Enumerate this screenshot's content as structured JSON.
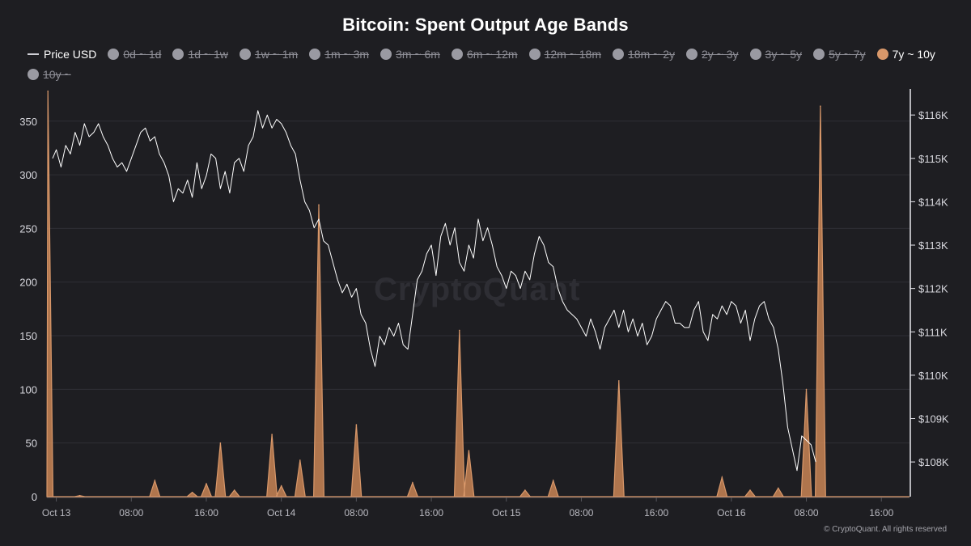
{
  "title": "Bitcoin: Spent Output Age Bands",
  "watermark": "CryptoQuant",
  "copyright": "© CryptoQuant. All rights reserved",
  "legend": [
    {
      "label": "Price USD",
      "state": "price"
    },
    {
      "label": "0d ~ 1d",
      "state": "disabled"
    },
    {
      "label": "1d ~ 1w",
      "state": "disabled"
    },
    {
      "label": "1w ~ 1m",
      "state": "disabled"
    },
    {
      "label": "1m ~ 3m",
      "state": "disabled"
    },
    {
      "label": "3m ~ 6m",
      "state": "disabled"
    },
    {
      "label": "6m ~ 12m",
      "state": "disabled"
    },
    {
      "label": "12m ~ 18m",
      "state": "disabled"
    },
    {
      "label": "18m ~ 2y",
      "state": "disabled"
    },
    {
      "label": "2y ~ 3y",
      "state": "disabled"
    },
    {
      "label": "3y ~ 5y",
      "state": "disabled"
    },
    {
      "label": "5y ~ 7y",
      "state": "disabled"
    },
    {
      "label": "7y ~ 10y",
      "state": "active"
    },
    {
      "label": "10y ~",
      "state": "disabled"
    }
  ],
  "colors": {
    "background": "#1e1e22",
    "area": "#d9986a",
    "area_fill": "#c98555",
    "price_line": "#ffffff",
    "grid": "#2f2f35",
    "disabled": "#9a9aa2"
  },
  "chart_data": {
    "type": "line+area",
    "x_ticks": [
      "Oct 13",
      "08:00",
      "16:00",
      "Oct 14",
      "08:00",
      "16:00",
      "Oct 15",
      "08:00",
      "16:00",
      "Oct 16",
      "08:00",
      "16:00"
    ],
    "x_range_hours": [
      -1,
      91
    ],
    "left_axis": {
      "ticks": [
        0,
        50,
        100,
        150,
        200,
        250,
        300,
        350
      ],
      "range": [
        0,
        380
      ]
    },
    "right_axis": {
      "ticks": [
        "$108K",
        "$109K",
        "$110K",
        "$111K",
        "$112K",
        "$113K",
        "$114K",
        "$115K",
        "$116K"
      ],
      "range": [
        107200,
        116600
      ]
    },
    "series": [
      {
        "name": "Price USD",
        "axis": "right",
        "points": [
          [
            -0.4,
            115000
          ],
          [
            0,
            115200
          ],
          [
            0.5,
            114800
          ],
          [
            1,
            115300
          ],
          [
            1.5,
            115100
          ],
          [
            2,
            115600
          ],
          [
            2.5,
            115300
          ],
          [
            3,
            115800
          ],
          [
            3.5,
            115500
          ],
          [
            4,
            115600
          ],
          [
            4.5,
            115800
          ],
          [
            5,
            115500
          ],
          [
            5.5,
            115300
          ],
          [
            6,
            115000
          ],
          [
            6.5,
            114800
          ],
          [
            7,
            114900
          ],
          [
            7.5,
            114700
          ],
          [
            8,
            115000
          ],
          [
            8.5,
            115300
          ],
          [
            9,
            115600
          ],
          [
            9.5,
            115700
          ],
          [
            10,
            115400
          ],
          [
            10.5,
            115500
          ],
          [
            11,
            115100
          ],
          [
            11.5,
            114900
          ],
          [
            12,
            114600
          ],
          [
            12.5,
            114000
          ],
          [
            13,
            114300
          ],
          [
            13.5,
            114200
          ],
          [
            14,
            114500
          ],
          [
            14.5,
            114100
          ],
          [
            15,
            114900
          ],
          [
            15.5,
            114300
          ],
          [
            16,
            114600
          ],
          [
            16.5,
            115100
          ],
          [
            17,
            115000
          ],
          [
            17.5,
            114300
          ],
          [
            18,
            114700
          ],
          [
            18.5,
            114200
          ],
          [
            19,
            114900
          ],
          [
            19.5,
            115000
          ],
          [
            20,
            114700
          ],
          [
            20.5,
            115300
          ],
          [
            21,
            115500
          ],
          [
            21.5,
            116100
          ],
          [
            22,
            115700
          ],
          [
            22.5,
            116000
          ],
          [
            23,
            115700
          ],
          [
            23.5,
            115900
          ],
          [
            24,
            115800
          ],
          [
            24.5,
            115600
          ],
          [
            25,
            115300
          ],
          [
            25.5,
            115100
          ],
          [
            26,
            114500
          ],
          [
            26.5,
            114000
          ],
          [
            27,
            113800
          ],
          [
            27.5,
            113400
          ],
          [
            28,
            113600
          ],
          [
            28.5,
            113100
          ],
          [
            29,
            113000
          ],
          [
            29.5,
            112600
          ],
          [
            30,
            112200
          ],
          [
            30.5,
            111900
          ],
          [
            31,
            112100
          ],
          [
            31.5,
            111800
          ],
          [
            32,
            112000
          ],
          [
            32.5,
            111400
          ],
          [
            33,
            111200
          ],
          [
            33.5,
            110600
          ],
          [
            34,
            110200
          ],
          [
            34.5,
            110900
          ],
          [
            35,
            110700
          ],
          [
            35.5,
            111100
          ],
          [
            36,
            110900
          ],
          [
            36.5,
            111200
          ],
          [
            37,
            110700
          ],
          [
            37.5,
            110600
          ],
          [
            38,
            111400
          ],
          [
            38.5,
            112200
          ],
          [
            39,
            112400
          ],
          [
            39.5,
            112800
          ],
          [
            40,
            113000
          ],
          [
            40.5,
            112300
          ],
          [
            41,
            113200
          ],
          [
            41.5,
            113500
          ],
          [
            42,
            113000
          ],
          [
            42.5,
            113400
          ],
          [
            43,
            112600
          ],
          [
            43.5,
            112400
          ],
          [
            44,
            113000
          ],
          [
            44.5,
            112700
          ],
          [
            45,
            113600
          ],
          [
            45.5,
            113100
          ],
          [
            46,
            113400
          ],
          [
            46.5,
            113000
          ],
          [
            47,
            112500
          ],
          [
            47.5,
            112300
          ],
          [
            48,
            112000
          ],
          [
            48.5,
            112400
          ],
          [
            49,
            112300
          ],
          [
            49.5,
            112000
          ],
          [
            50,
            112400
          ],
          [
            50.5,
            112200
          ],
          [
            51,
            112800
          ],
          [
            51.5,
            113200
          ],
          [
            52,
            113000
          ],
          [
            52.5,
            112600
          ],
          [
            53,
            112500
          ],
          [
            53.5,
            112000
          ],
          [
            54,
            111700
          ],
          [
            54.5,
            111500
          ],
          [
            55,
            111400
          ],
          [
            55.5,
            111300
          ],
          [
            56,
            111100
          ],
          [
            56.5,
            110900
          ],
          [
            57,
            111300
          ],
          [
            57.5,
            111000
          ],
          [
            58,
            110600
          ],
          [
            58.5,
            111100
          ],
          [
            59,
            111300
          ],
          [
            59.5,
            111500
          ],
          [
            60,
            111100
          ],
          [
            60.5,
            111500
          ],
          [
            61,
            111000
          ],
          [
            61.5,
            111300
          ],
          [
            62,
            110900
          ],
          [
            62.5,
            111200
          ],
          [
            63,
            110700
          ],
          [
            63.5,
            110900
          ],
          [
            64,
            111300
          ],
          [
            64.5,
            111500
          ],
          [
            65,
            111700
          ],
          [
            65.5,
            111600
          ],
          [
            66,
            111200
          ],
          [
            66.5,
            111200
          ],
          [
            67,
            111100
          ],
          [
            67.5,
            111100
          ],
          [
            68,
            111500
          ],
          [
            68.5,
            111700
          ],
          [
            69,
            111000
          ],
          [
            69.5,
            110800
          ],
          [
            70,
            111400
          ],
          [
            70.5,
            111300
          ],
          [
            71,
            111600
          ],
          [
            71.5,
            111400
          ],
          [
            72,
            111700
          ],
          [
            72.5,
            111600
          ],
          [
            73,
            111200
          ],
          [
            73.5,
            111500
          ],
          [
            74,
            110800
          ],
          [
            74.5,
            111300
          ],
          [
            75,
            111600
          ],
          [
            75.5,
            111700
          ],
          [
            76,
            111300
          ],
          [
            76.5,
            111100
          ],
          [
            77,
            110600
          ],
          [
            77.5,
            109800
          ],
          [
            78,
            108800
          ],
          [
            78.5,
            108300
          ],
          [
            79,
            107800
          ],
          [
            79.5,
            108600
          ],
          [
            80,
            108500
          ],
          [
            80.5,
            108400
          ],
          [
            81,
            108000
          ]
        ]
      },
      {
        "name": "7y ~ 10y",
        "axis": "left",
        "peaks": [
          [
            -0.9,
            378
          ],
          [
            2.5,
            1
          ],
          [
            10.5,
            15
          ],
          [
            14.5,
            4
          ],
          [
            16,
            12
          ],
          [
            17.5,
            50
          ],
          [
            19,
            6
          ],
          [
            23,
            58
          ],
          [
            24,
            10
          ],
          [
            26,
            34
          ],
          [
            28,
            272
          ],
          [
            32,
            67
          ],
          [
            38,
            13
          ],
          [
            43,
            155
          ],
          [
            44,
            43
          ],
          [
            50,
            6
          ],
          [
            53,
            15
          ],
          [
            60,
            108
          ],
          [
            71,
            18
          ],
          [
            74,
            6
          ],
          [
            77,
            8
          ],
          [
            80,
            100
          ],
          [
            81.5,
            364
          ]
        ]
      }
    ]
  }
}
